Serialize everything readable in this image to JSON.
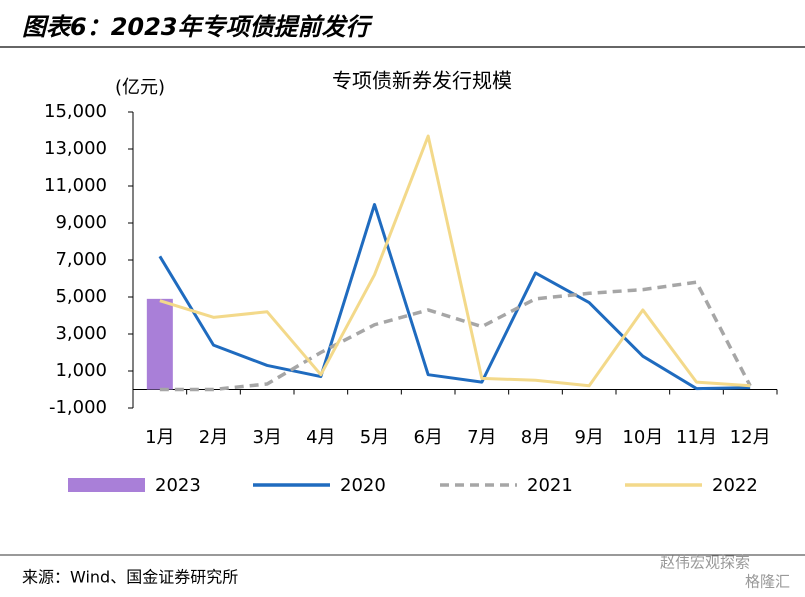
{
  "header": {
    "title": "图表6：2023年专项债提前发行"
  },
  "chart_data": {
    "type": "line",
    "title": "专项债新券发行规模",
    "y_label": "(亿元)",
    "categories": [
      "1月",
      "2月",
      "3月",
      "4月",
      "5月",
      "6月",
      "7月",
      "8月",
      "9月",
      "10月",
      "11月",
      "12月"
    ],
    "ylim": [
      -1000,
      15000
    ],
    "yticks": [
      {
        "value": -1000,
        "label": "-1,000"
      },
      {
        "value": 1000,
        "label": "1,000"
      },
      {
        "value": 3000,
        "label": "3,000"
      },
      {
        "value": 5000,
        "label": "5,000"
      },
      {
        "value": 7000,
        "label": "7,000"
      },
      {
        "value": 9000,
        "label": "9,000"
      },
      {
        "value": 11000,
        "label": "11,000"
      },
      {
        "value": 13000,
        "label": "13,000"
      },
      {
        "value": 15000,
        "label": "15,000"
      }
    ],
    "series": [
      {
        "name": "2023",
        "type": "bar",
        "color": "#a97fd8",
        "values": [
          4900,
          null,
          null,
          null,
          null,
          null,
          null,
          null,
          null,
          null,
          null,
          null
        ]
      },
      {
        "name": "2020",
        "type": "line",
        "color": "#1f6bbf",
        "values": [
          7200,
          2400,
          1300,
          700,
          10000,
          800,
          400,
          6300,
          4700,
          1800,
          50,
          100
        ]
      },
      {
        "name": "2021",
        "type": "dashed",
        "color": "#a6a6a6",
        "values": [
          0,
          0,
          300,
          2000,
          3500,
          4300,
          3400,
          4900,
          5200,
          5400,
          5800,
          200
        ]
      },
      {
        "name": "2022",
        "type": "line",
        "color": "#f3d98a",
        "values": [
          4800,
          3900,
          4200,
          800,
          6200,
          13700,
          600,
          500,
          200,
          4300,
          400,
          200
        ]
      }
    ]
  },
  "footer": {
    "source": "来源：Wind、国金证券研究所",
    "watermark": "赵伟宏观探索",
    "watermark2": "格隆汇"
  }
}
